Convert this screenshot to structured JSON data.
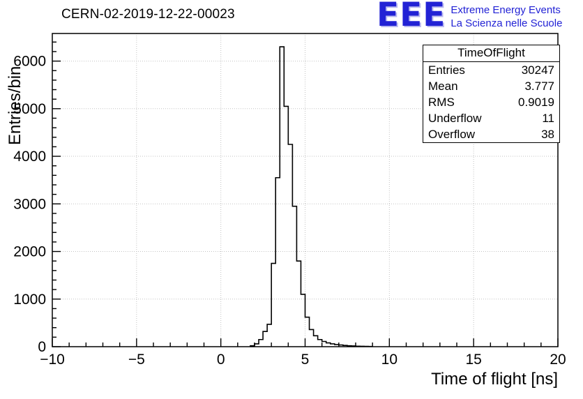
{
  "header": {
    "title": "CERN-02-2019-12-22-00023",
    "logo": {
      "text": "EEE",
      "line1": "Extreme Energy Events",
      "line2": "La Scienza nelle Scuole"
    }
  },
  "colors": {
    "logo_blue": "#2222d5",
    "grid": "#c2c2c2",
    "line": "#000000"
  },
  "stats": {
    "title": "TimeOfFlight",
    "rows": [
      [
        "Entries",
        "30247"
      ],
      [
        "Mean",
        "3.777"
      ],
      [
        "RMS",
        "0.9019"
      ],
      [
        "Underflow",
        "11"
      ],
      [
        "Overflow",
        "38"
      ]
    ]
  },
  "chart_data": {
    "type": "bar",
    "title": "CERN-02-2019-12-22-00023",
    "xlabel": "Time of flight [ns]",
    "ylabel": "Entries/bin",
    "xlim": [
      -10,
      20
    ],
    "ylim": [
      0,
      6580
    ],
    "grid": true,
    "legend_position": "top-right-stats-box",
    "entries": 30247,
    "mean": 3.777,
    "rms": 0.9019,
    "underflow": 11,
    "overflow": 38,
    "x_ticks": [
      -10,
      -5,
      0,
      5,
      10,
      15,
      20
    ],
    "x_tick_labels": [
      "−10",
      "−5",
      "0",
      "5",
      "10",
      "15",
      "20"
    ],
    "y_ticks": [
      0,
      1000,
      2000,
      3000,
      4000,
      5000,
      6000
    ],
    "y_tick_labels": [
      "0",
      "1000",
      "2000",
      "3000",
      "4000",
      "5000",
      "6000"
    ],
    "bins": {
      "start": 1.75,
      "width": 0.25,
      "values": [
        20,
        60,
        150,
        320,
        470,
        1750,
        3550,
        6300,
        5050,
        4250,
        2950,
        1800,
        1100,
        620,
        360,
        230,
        150,
        110,
        80,
        60,
        45,
        35,
        27,
        20,
        15,
        11,
        8,
        6,
        4
      ]
    }
  }
}
